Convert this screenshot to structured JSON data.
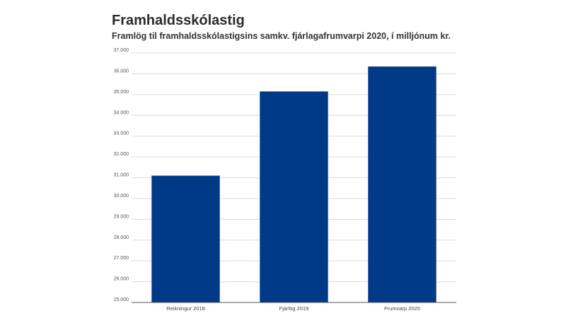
{
  "chart_data": {
    "type": "bar",
    "title": "Framhaldsskólastig",
    "subtitle": "Framlög til framhaldsskólastigsins samkv. fjárlagafrumvarpi 2020, í milljónum kr.",
    "categories": [
      "Reikningur 2018",
      "Fjárlög 2019",
      "Frumvarp 2020"
    ],
    "values": [
      31100,
      35150,
      36350
    ],
    "ylim": [
      25000,
      37000
    ],
    "yticks": [
      25000,
      26000,
      27000,
      28000,
      29000,
      30000,
      31000,
      32000,
      33000,
      34000,
      35000,
      36000,
      37000
    ],
    "ytick_labels": [
      "25.000",
      "26.000",
      "27.000",
      "28.000",
      "29.000",
      "30.000",
      "31.000",
      "32.000",
      "33.000",
      "34.000",
      "35.000",
      "36.000",
      "37.000"
    ],
    "xlabel": "",
    "ylabel": "",
    "grid": true,
    "legend": "none",
    "bar_color": "#003a86"
  }
}
